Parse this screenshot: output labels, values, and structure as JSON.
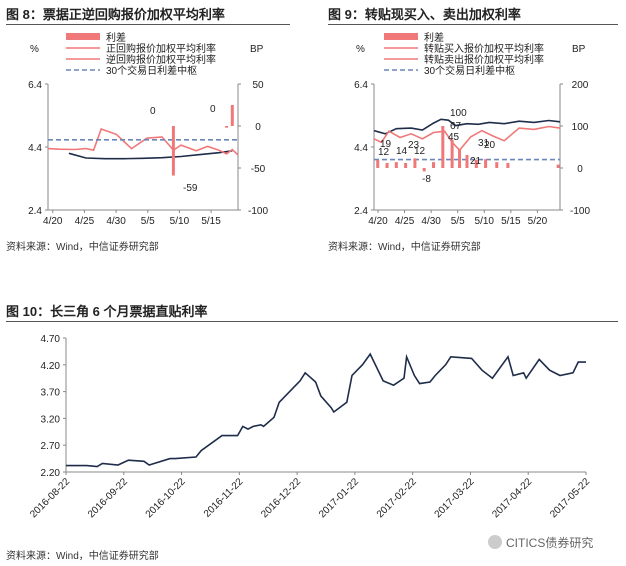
{
  "fig8": {
    "title": "图 8：票据正逆回购报价加权平均利率",
    "source": "资料来源：Wind，中信证券研究部"
  },
  "fig9": {
    "title": "图 9：转贴现买入、卖出加权利率",
    "source": "资料来源：Wind，中信证券研究部"
  },
  "fig10": {
    "title": "图 10：长三角 6 个月票据直贴利率",
    "source": "资料来源：Wind，中信证券研究部"
  },
  "watermark": "CITICS债券研究",
  "colors": {
    "line_dark": "#1f2d4a",
    "line_pink": "#f07878",
    "bar_pink": "#f07878",
    "dash_blue": "#6b86b8",
    "axis": "#888888"
  },
  "chart_data": [
    {
      "type": "bar+line",
      "ylabel": "%",
      "ylabel2": "BP",
      "ylim": [
        2.4,
        6.4
      ],
      "y_ticks": [
        "6.4",
        "4.4",
        "2.4"
      ],
      "y2lim": [
        -100,
        50
      ],
      "y2_ticks": [
        "50",
        "0",
        "-50",
        "-100"
      ],
      "categories": [
        "4/20",
        "4/25",
        "4/30",
        "5/5",
        "5/10",
        "5/15"
      ],
      "legend": [
        "利差",
        "正回购报价加权平均利率",
        "逆回购报价加权平均利率",
        "30个交易日利差中枢"
      ],
      "annotations": [
        "0",
        "0",
        "-59"
      ],
      "series": [
        {
          "name": "正回购报价加权平均利率",
          "style": "line",
          "color": "#1f2d4a",
          "x": [
            0.11,
            0.2,
            0.3,
            0.4,
            0.5,
            0.6,
            0.7,
            0.8,
            0.9,
            0.97
          ],
          "values": [
            4.2,
            4.05,
            4.03,
            4.03,
            4.04,
            4.06,
            4.1,
            4.16,
            4.22,
            4.28
          ]
        },
        {
          "name": "逆回购报价加权平均利率",
          "style": "line",
          "color": "#f07878",
          "x": [
            0.0,
            0.06,
            0.14,
            0.2,
            0.24,
            0.28,
            0.36,
            0.44,
            0.52,
            0.6,
            0.66,
            0.7,
            0.78,
            0.84,
            0.9,
            0.94,
            0.97,
            1.0
          ],
          "values": [
            4.35,
            4.33,
            4.32,
            4.35,
            4.3,
            4.97,
            4.8,
            4.35,
            4.68,
            4.72,
            4.3,
            4.46,
            4.28,
            4.42,
            4.3,
            4.18,
            4.32,
            4.15
          ]
        },
        {
          "name": "30个交易日利差中枢",
          "style": "dashed",
          "color": "#6b86b8",
          "x": [
            0.0,
            1.0
          ],
          "values": [
            4.63,
            4.63
          ]
        },
        {
          "name": "利差",
          "style": "bar",
          "color": "#f07878",
          "axis": "right",
          "x": [
            0.66,
            0.94,
            0.97
          ],
          "values": [
            -59,
            -2,
            25
          ]
        }
      ]
    },
    {
      "type": "bar+line",
      "ylabel": "%",
      "ylabel2": "BP",
      "ylim": [
        2.4,
        6.4
      ],
      "y_ticks": [
        "6.4",
        "4.4",
        "2.4"
      ],
      "y2lim": [
        -100,
        200
      ],
      "y2_ticks": [
        "200",
        "100",
        "0",
        "-100"
      ],
      "categories": [
        "4/20",
        "4/25",
        "4/30",
        "5/5",
        "5/10",
        "5/15",
        "5/20"
      ],
      "legend": [
        "利差",
        "转贴买入报价加权平均利率",
        "转贴卖出报价加权平均利率",
        "30个交易日利差中枢"
      ],
      "annotations": [
        "19",
        "12",
        "14",
        "12",
        "23",
        "-8",
        "100",
        "67",
        "45",
        "31",
        "20",
        "21"
      ],
      "series": [
        {
          "name": "转贴买入报价加权平均利率",
          "style": "line",
          "color": "#1f2d4a",
          "x": [
            0.0,
            0.06,
            0.12,
            0.2,
            0.26,
            0.32,
            0.36,
            0.4,
            0.44,
            0.5,
            0.56,
            0.62,
            0.7,
            0.78,
            0.86,
            0.94,
            1.0
          ],
          "values": [
            4.92,
            4.82,
            4.98,
            5.0,
            4.94,
            5.16,
            5.28,
            5.25,
            5.08,
            5.14,
            5.12,
            5.18,
            5.14,
            5.22,
            5.18,
            5.24,
            5.2
          ]
        },
        {
          "name": "转贴卖出报价加权平均利率",
          "style": "line",
          "color": "#f07878",
          "x": [
            0.0,
            0.04,
            0.08,
            0.14,
            0.2,
            0.26,
            0.32,
            0.38,
            0.42,
            0.46,
            0.52,
            0.58,
            0.64,
            0.7,
            0.78,
            0.86,
            0.94,
            1.0
          ],
          "values": [
            4.66,
            4.55,
            4.9,
            4.7,
            4.82,
            4.66,
            4.86,
            4.9,
            4.55,
            4.3,
            4.72,
            4.92,
            4.75,
            4.6,
            5.0,
            4.96,
            5.05,
            5.0
          ]
        },
        {
          "name": "30个交易日利差中枢",
          "style": "dashed",
          "color": "#6b86b8",
          "x": [
            0.0,
            1.0
          ],
          "values": [
            4.0,
            4.0
          ]
        },
        {
          "name": "利差",
          "style": "bar",
          "color": "#f07878",
          "axis": "right",
          "x": [
            0.02,
            0.07,
            0.12,
            0.17,
            0.22,
            0.27,
            0.32,
            0.37,
            0.42,
            0.46,
            0.5,
            0.55,
            0.6,
            0.66,
            0.72,
            0.99
          ],
          "values": [
            19,
            12,
            14,
            12,
            23,
            -8,
            14,
            100,
            67,
            45,
            31,
            20,
            21,
            14,
            12,
            8
          ]
        }
      ]
    },
    {
      "type": "line",
      "ylim": [
        2.2,
        4.7
      ],
      "y_ticks": [
        "4.70",
        "4.20",
        "3.70",
        "3.20",
        "2.70",
        "2.20"
      ],
      "categories": [
        "2016-08-22",
        "2016-09-22",
        "2016-10-22",
        "2016-11-22",
        "2016-12-22",
        "2017-01-22",
        "2017-02-22",
        "2017-03-22",
        "2017-04-22",
        "2017-05-22"
      ],
      "series": [
        {
          "style": "line",
          "color": "#1f2d4a",
          "x": [
            0.0,
            0.04,
            0.06,
            0.07,
            0.1,
            0.12,
            0.15,
            0.16,
            0.2,
            0.21,
            0.25,
            0.26,
            0.3,
            0.33,
            0.34,
            0.35,
            0.36,
            0.375,
            0.38,
            0.4,
            0.41,
            0.45,
            0.46,
            0.48,
            0.49,
            0.51,
            0.515,
            0.54,
            0.55,
            0.57,
            0.585,
            0.61,
            0.63,
            0.65,
            0.655,
            0.67,
            0.68,
            0.7,
            0.71,
            0.73,
            0.74,
            0.78,
            0.8,
            0.82,
            0.85,
            0.86,
            0.88,
            0.885,
            0.91,
            0.93,
            0.95,
            0.975,
            0.985,
            1.0
          ],
          "values": [
            2.32,
            2.32,
            2.3,
            2.36,
            2.33,
            2.42,
            2.4,
            2.33,
            2.45,
            2.45,
            2.48,
            2.6,
            2.88,
            2.88,
            3.05,
            3.0,
            3.05,
            3.08,
            3.05,
            3.22,
            3.5,
            3.9,
            4.05,
            3.88,
            3.62,
            3.4,
            3.32,
            3.5,
            4.0,
            4.2,
            4.4,
            3.9,
            3.82,
            3.95,
            4.35,
            4.0,
            3.85,
            3.88,
            4.0,
            4.2,
            4.35,
            4.32,
            4.1,
            3.95,
            4.35,
            4.0,
            4.05,
            3.95,
            4.3,
            4.1,
            4.0,
            4.05,
            4.25,
            4.25
          ]
        }
      ]
    }
  ]
}
